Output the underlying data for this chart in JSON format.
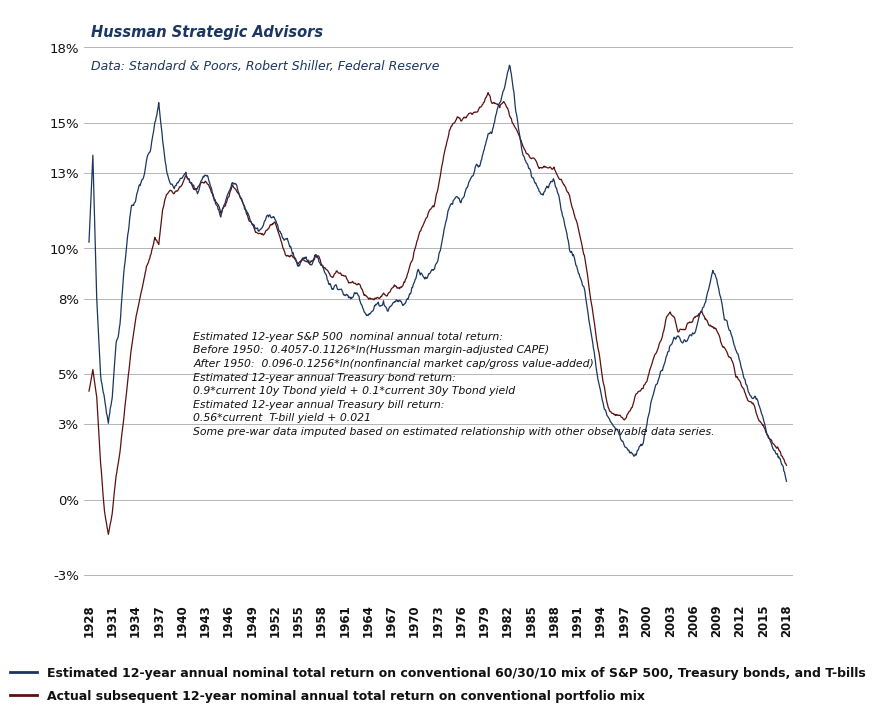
{
  "title_line1": "Hussman Strategic Advisors",
  "title_line2": "Data: Standard & Poors, Robert Shiller, Federal Reserve",
  "annotation": "Estimated 12-year S&P 500  nominal annual total return:\nBefore 1950:  0.4057-0.1126*ln(Hussman margin-adjusted CAPE)\nAfter 1950:  0.096-0.1256*ln(nonfinancial market cap/gross value-added)\nEstimated 12-year annual Treasury bond return:\n0.9*current 10y Tbond yield + 0.1*current 30y Tbond yield\nEstimated 12-year annual Treasury bill return:\n0.56*current  T-bill yield + 0.021\nSome pre-war data imputed based on estimated relationship with other observable data series.",
  "legend1": "Estimated 12-year annual nominal total return on conventional 60/30/10 mix of S&P 500, Treasury bonds, and T-bills",
  "legend2": "Actual subsequent 12-year nominal annual total return on conventional portfolio mix",
  "color_estimated": "#1B3660",
  "color_actual": "#5C1010",
  "ylim_min": -0.04,
  "ylim_max": 0.195,
  "yticks": [
    -0.03,
    0.0,
    0.03,
    0.05,
    0.08,
    0.1,
    0.13,
    0.15,
    0.18
  ],
  "background_color": "#FFFFFF",
  "grid_color": "#AAAAAA"
}
